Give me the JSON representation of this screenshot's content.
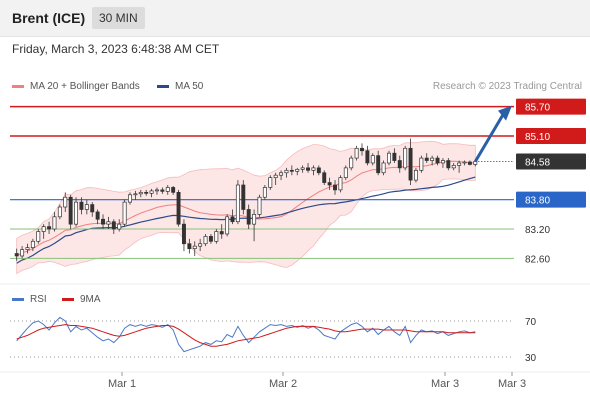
{
  "header": {
    "title": "Brent (ICE)",
    "interval": "30 MIN"
  },
  "datetime": "Friday, March 3, 2023 6:48:38 AM CET",
  "legend": {
    "ma20_label": "MA 20 + Bollinger Bands",
    "ma50_label": "MA 50",
    "rsi_label": "RSI",
    "ma9_label": "9MA",
    "credit": "Research © 2023 Trading Central"
  },
  "colors": {
    "ma20": "#f08080",
    "ma50": "#2c4a8a",
    "rsi": "#4a78c8",
    "ma9": "#d11b1b",
    "resistance": "#d11b1b",
    "support": "#2a66c8",
    "minor_support": "#86c27a",
    "current": "#333333",
    "bollinger_fill": "#fde0e0",
    "arrow": "#2a5fa8"
  },
  "chart_data": [
    {
      "type": "candlestick",
      "title": "Brent (ICE) 30 MIN",
      "ylim": [
        82.2,
        86.0
      ],
      "x_ticks": [
        "Mar 1",
        "Mar 2",
        "Mar 3",
        "Mar 3"
      ],
      "current_price": 84.58,
      "levels": [
        {
          "value": 85.7,
          "label": "85.70",
          "kind": "resistance"
        },
        {
          "value": 85.1,
          "label": "85.10",
          "kind": "resistance"
        },
        {
          "value": 84.58,
          "label": "84.58",
          "kind": "current"
        },
        {
          "value": 83.8,
          "label": "83.80",
          "kind": "support"
        },
        {
          "value": 83.2,
          "label": "83.20",
          "kind": "minor"
        },
        {
          "value": 82.6,
          "label": "82.60",
          "kind": "minor"
        }
      ],
      "candles": [
        [
          82.7,
          82.8,
          82.55,
          82.65
        ],
        [
          82.65,
          82.85,
          82.6,
          82.78
        ],
        [
          82.78,
          82.9,
          82.7,
          82.82
        ],
        [
          82.82,
          83.0,
          82.75,
          82.95
        ],
        [
          82.95,
          83.2,
          82.9,
          83.15
        ],
        [
          83.15,
          83.3,
          83.0,
          83.25
        ],
        [
          83.25,
          83.35,
          83.1,
          83.2
        ],
        [
          83.2,
          83.55,
          83.15,
          83.45
        ],
        [
          83.45,
          83.7,
          83.4,
          83.65
        ],
        [
          83.65,
          83.95,
          83.55,
          83.85
        ],
        [
          83.85,
          83.9,
          83.2,
          83.3
        ],
        [
          83.3,
          83.85,
          83.25,
          83.75
        ],
        [
          83.75,
          83.85,
          83.5,
          83.6
        ],
        [
          83.6,
          83.8,
          83.5,
          83.7
        ],
        [
          83.7,
          83.75,
          83.45,
          83.55
        ],
        [
          83.55,
          83.6,
          83.3,
          83.4
        ],
        [
          83.4,
          83.5,
          83.2,
          83.3
        ],
        [
          83.3,
          83.45,
          83.2,
          83.35
        ],
        [
          83.35,
          83.4,
          83.1,
          83.2
        ],
        [
          83.2,
          83.4,
          83.15,
          83.3
        ],
        [
          83.3,
          83.8,
          83.25,
          83.75
        ],
        [
          83.75,
          83.95,
          83.7,
          83.9
        ],
        [
          83.9,
          83.98,
          83.8,
          83.92
        ],
        [
          83.92,
          84.0,
          83.85,
          83.95
        ],
        [
          83.95,
          84.0,
          83.88,
          83.93
        ],
        [
          83.93,
          84.02,
          83.85,
          83.98
        ],
        [
          83.98,
          84.05,
          83.9,
          84.0
        ],
        [
          84.0,
          84.05,
          83.92,
          83.97
        ],
        [
          83.97,
          84.1,
          83.9,
          84.05
        ],
        [
          84.05,
          84.08,
          83.9,
          83.95
        ],
        [
          83.95,
          84.0,
          83.25,
          83.3
        ],
        [
          83.3,
          83.4,
          82.75,
          82.9
        ],
        [
          82.9,
          83.0,
          82.7,
          82.8
        ],
        [
          82.8,
          82.95,
          82.65,
          82.85
        ],
        [
          82.85,
          83.0,
          82.75,
          82.9
        ],
        [
          82.9,
          83.1,
          82.85,
          83.05
        ],
        [
          83.05,
          83.1,
          82.9,
          82.95
        ],
        [
          82.95,
          83.2,
          82.9,
          83.15
        ],
        [
          83.15,
          83.3,
          83.0,
          83.1
        ],
        [
          83.1,
          83.5,
          83.05,
          83.45
        ],
        [
          83.45,
          83.6,
          83.3,
          83.35
        ],
        [
          83.35,
          84.2,
          83.3,
          84.1
        ],
        [
          84.1,
          84.2,
          83.5,
          83.6
        ],
        [
          83.6,
          83.7,
          83.2,
          83.3
        ],
        [
          83.3,
          83.6,
          82.95,
          83.5
        ],
        [
          83.5,
          83.9,
          83.45,
          83.85
        ],
        [
          83.85,
          84.1,
          83.8,
          84.05
        ],
        [
          84.05,
          84.3,
          84.0,
          84.25
        ],
        [
          84.25,
          84.35,
          84.1,
          84.3
        ],
        [
          84.3,
          84.4,
          84.2,
          84.35
        ],
        [
          84.35,
          84.45,
          84.25,
          84.4
        ],
        [
          84.4,
          84.5,
          84.3,
          84.38
        ],
        [
          84.38,
          84.45,
          84.3,
          84.42
        ],
        [
          84.42,
          84.5,
          84.35,
          84.45
        ],
        [
          84.45,
          84.55,
          84.35,
          84.4
        ],
        [
          84.4,
          84.5,
          84.3,
          84.45
        ],
        [
          84.45,
          84.5,
          84.3,
          84.35
        ],
        [
          84.35,
          84.4,
          84.1,
          84.15
        ],
        [
          84.15,
          84.25,
          84.0,
          84.1
        ],
        [
          84.1,
          84.2,
          83.9,
          84.0
        ],
        [
          84.0,
          84.3,
          83.95,
          84.25
        ],
        [
          84.25,
          84.5,
          84.2,
          84.45
        ],
        [
          84.45,
          84.7,
          84.4,
          84.65
        ],
        [
          84.65,
          84.9,
          84.6,
          84.85
        ],
        [
          84.85,
          84.95,
          84.7,
          84.8
        ],
        [
          84.8,
          84.9,
          84.5,
          84.55
        ],
        [
          84.55,
          84.75,
          84.5,
          84.7
        ],
        [
          84.7,
          84.8,
          84.3,
          84.35
        ],
        [
          84.35,
          84.6,
          84.3,
          84.55
        ],
        [
          84.55,
          84.8,
          84.5,
          84.75
        ],
        [
          84.75,
          84.85,
          84.55,
          84.6
        ],
        [
          84.6,
          84.7,
          84.35,
          84.45
        ],
        [
          84.45,
          84.9,
          84.4,
          84.85
        ],
        [
          84.85,
          85.05,
          84.1,
          84.2
        ],
        [
          84.2,
          84.45,
          84.15,
          84.4
        ],
        [
          84.4,
          84.7,
          84.35,
          84.65
        ],
        [
          84.65,
          84.75,
          84.55,
          84.6
        ],
        [
          84.6,
          84.7,
          84.5,
          84.65
        ],
        [
          84.65,
          84.7,
          84.5,
          84.55
        ],
        [
          84.55,
          84.65,
          84.45,
          84.6
        ],
        [
          84.6,
          84.65,
          84.4,
          84.45
        ],
        [
          84.45,
          84.55,
          84.4,
          84.5
        ],
        [
          84.5,
          84.6,
          84.35,
          84.55
        ],
        [
          84.55,
          84.6,
          84.5,
          84.57
        ],
        [
          84.57,
          84.6,
          84.5,
          84.52
        ],
        [
          84.52,
          84.6,
          84.48,
          84.58
        ]
      ]
    },
    {
      "type": "line",
      "title": "RSI",
      "ylim": [
        20,
        80
      ],
      "y_ticks": [
        70,
        30
      ],
      "series": [
        {
          "name": "RSI",
          "values": [
            48,
            55,
            62,
            68,
            70,
            66,
            60,
            68,
            74,
            70,
            58,
            64,
            60,
            62,
            57,
            52,
            48,
            50,
            46,
            52,
            62,
            66,
            64,
            66,
            64,
            66,
            65,
            63,
            66,
            60,
            44,
            36,
            38,
            40,
            42,
            46,
            44,
            48,
            47,
            55,
            52,
            64,
            54,
            46,
            52,
            58,
            62,
            66,
            65,
            66,
            64,
            65,
            63,
            65,
            62,
            64,
            60,
            54,
            52,
            50,
            58,
            62,
            66,
            68,
            64,
            58,
            62,
            55,
            60,
            64,
            58,
            54,
            64,
            46,
            54,
            60,
            58,
            59,
            56,
            58,
            54,
            56,
            58,
            59,
            57,
            58
          ]
        },
        {
          "name": "9MA",
          "values": [
            50,
            52,
            54,
            57,
            60,
            62,
            63,
            64,
            65,
            66,
            65,
            65,
            64,
            63,
            62,
            60,
            58,
            56,
            54,
            53,
            54,
            56,
            58,
            60,
            62,
            63,
            64,
            65,
            65,
            64,
            61,
            57,
            53,
            49,
            46,
            44,
            42,
            42,
            43,
            44,
            46,
            48,
            49,
            50,
            51,
            52,
            54,
            56,
            58,
            60,
            62,
            63,
            64,
            64,
            64,
            64,
            63,
            62,
            61,
            59,
            58,
            58,
            59,
            60,
            61,
            61,
            61,
            61,
            60,
            60,
            60,
            60,
            60,
            59,
            58,
            58,
            58,
            58,
            58,
            58,
            57,
            57,
            57,
            57,
            57,
            57
          ]
        }
      ]
    }
  ]
}
